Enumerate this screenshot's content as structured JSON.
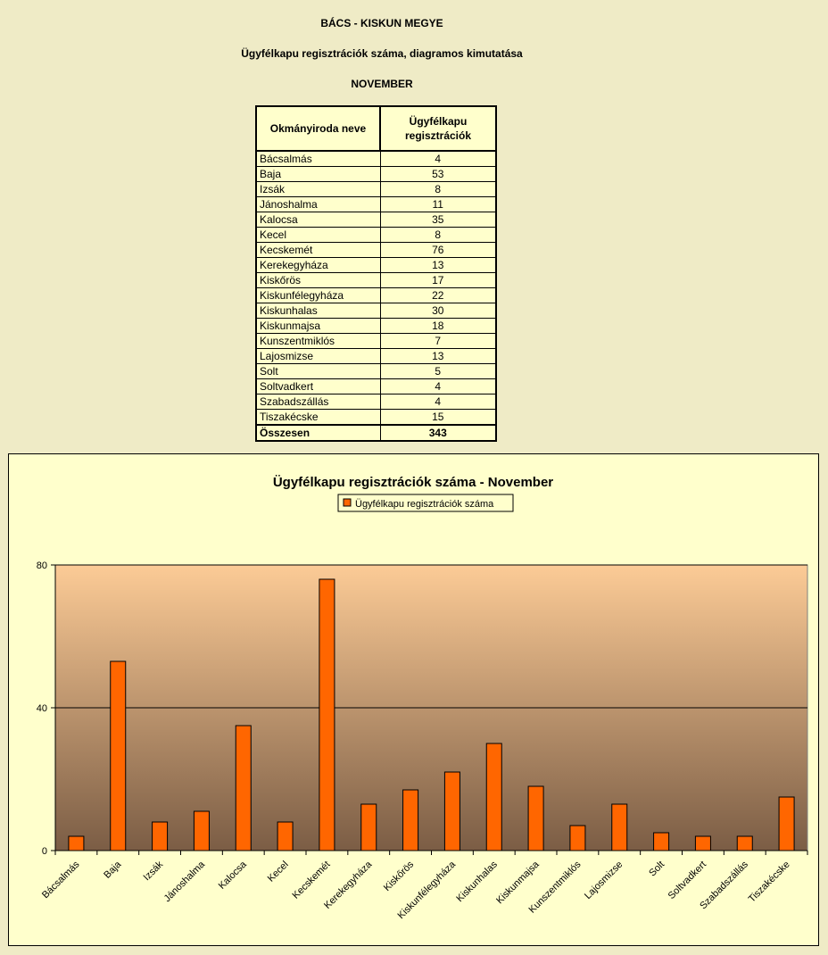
{
  "header": {
    "county": "BÁCS - KISKUN MEGYE",
    "subtitle": "Ügyfélkapu regisztrációk száma, diagramos kimutatása",
    "month": "NOVEMBER"
  },
  "table": {
    "col1": "Okmányiroda neve",
    "col2_line1": "Ügyfélkapu",
    "col2_line2": "regisztrációk",
    "rows": [
      {
        "name": "Bácsalmás",
        "value": "4"
      },
      {
        "name": "Baja",
        "value": "53"
      },
      {
        "name": "Izsák",
        "value": "8"
      },
      {
        "name": "Jánoshalma",
        "value": "11"
      },
      {
        "name": "Kalocsa",
        "value": "35"
      },
      {
        "name": "Kecel",
        "value": "8"
      },
      {
        "name": "Kecskemét",
        "value": "76"
      },
      {
        "name": "Kerekegyháza",
        "value": "13"
      },
      {
        "name": "Kiskőrös",
        "value": "17"
      },
      {
        "name": "Kiskunfélegyháza",
        "value": "22"
      },
      {
        "name": "Kiskunhalas",
        "value": "30"
      },
      {
        "name": "Kiskunmajsa",
        "value": "18"
      },
      {
        "name": "Kunszentmiklós",
        "value": "7"
      },
      {
        "name": "Lajosmizse",
        "value": "13"
      },
      {
        "name": "Solt",
        "value": "5"
      },
      {
        "name": "Soltvadkert",
        "value": "4"
      },
      {
        "name": "Szabadszállás",
        "value": "4"
      },
      {
        "name": "Tiszakécske",
        "value": "15"
      }
    ],
    "total_label": "Összesen",
    "total_value": "343"
  },
  "chart_data": {
    "type": "bar",
    "title": "Ügyfélkapu regisztrációk száma - November",
    "categories": [
      "Bácsalmás",
      "Baja",
      "Izsák",
      "Jánoshalma",
      "Kalocsa",
      "Kecel",
      "Kecskemét",
      "Kerekegyháza",
      "Kiskőrös",
      "Kiskunfélegyháza",
      "Kiskunhalas",
      "Kiskunmajsa",
      "Kunszentmiklós",
      "Lajosmizse",
      "Solt",
      "Soltvadkert",
      "Szabadszállás",
      "Tiszakécske"
    ],
    "series": [
      {
        "name": "Ügyfélkapu regisztrációk száma",
        "values": [
          4,
          53,
          8,
          11,
          35,
          8,
          76,
          13,
          17,
          22,
          30,
          18,
          7,
          13,
          5,
          4,
          4,
          15
        ]
      }
    ],
    "ylim": [
      0,
      80
    ],
    "yticks": [
      0,
      40,
      80
    ],
    "grid": true,
    "legend": "top",
    "colors": {
      "bar": "#ff6600",
      "plot_top": "#fccb96",
      "plot_bottom": "#7b5d45"
    }
  }
}
